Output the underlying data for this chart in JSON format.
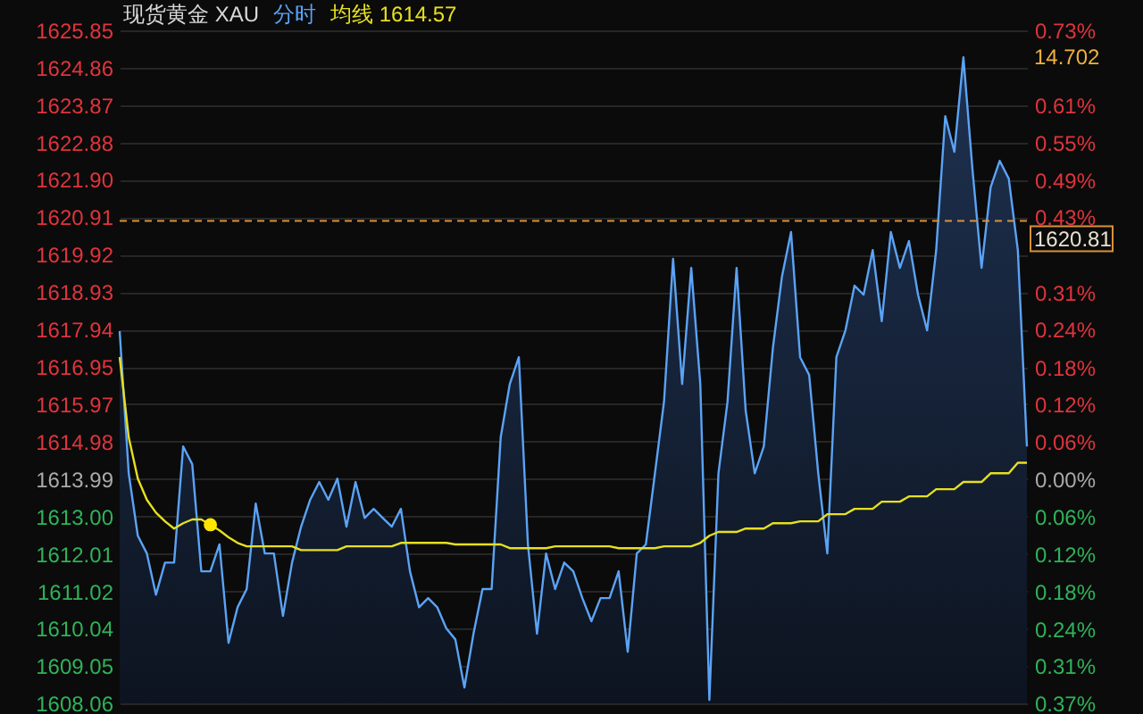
{
  "chart_data": {
    "type": "area",
    "title": "现货黄金 XAU",
    "categories": [
      null,
      null,
      null,
      null,
      null,
      null,
      null,
      null,
      null,
      null,
      null,
      null,
      null,
      null,
      null,
      null,
      null,
      null,
      null,
      null,
      null,
      null,
      null,
      null,
      null,
      null,
      null,
      null,
      null,
      null,
      null,
      null,
      null,
      null,
      null,
      null,
      null,
      null,
      null,
      null,
      null,
      null,
      null,
      null,
      null,
      null,
      null,
      null,
      null,
      null,
      null,
      null,
      null,
      null,
      null,
      null,
      null,
      null,
      null,
      null,
      null,
      null,
      null,
      null,
      null,
      null,
      null,
      null,
      null,
      null,
      null,
      null,
      null,
      null,
      null,
      null,
      null,
      null,
      null,
      null,
      null,
      null,
      null,
      null,
      null,
      null,
      null,
      null,
      null,
      null,
      null,
      null,
      null,
      null,
      null,
      null,
      null,
      null,
      null,
      null,
      null
    ],
    "series": [
      {
        "name": "分时",
        "color": "#5ba3f5",
        "values": [
          1617.9,
          1614.14,
          1612.49,
          1612.02,
          1610.93,
          1611.78,
          1611.78,
          1614.85,
          1614.38,
          1611.55,
          1611.55,
          1612.26,
          1609.66,
          1610.6,
          1611.08,
          1613.34,
          1612.02,
          1612.02,
          1610.37,
          1611.78,
          1612.73,
          1613.44,
          1613.91,
          1613.44,
          1614.0,
          1612.73,
          1613.91,
          1612.96,
          1613.2,
          1612.96,
          1612.73,
          1613.2,
          1611.55,
          1610.6,
          1610.84,
          1610.6,
          1610.04,
          1609.75,
          1608.48,
          1609.9,
          1611.08,
          1611.08,
          1615.09,
          1616.5,
          1617.21,
          1612.26,
          1609.9,
          1612.02,
          1611.08,
          1611.78,
          1611.55,
          1610.84,
          1610.23,
          1610.84,
          1610.84,
          1611.55,
          1609.42,
          1612.02,
          1612.26,
          1614.14,
          1616.03,
          1619.81,
          1616.5,
          1619.57,
          1616.5,
          1608.15,
          1614.14,
          1616.03,
          1619.57,
          1615.8,
          1614.14,
          1614.85,
          1617.45,
          1619.34,
          1620.52,
          1617.21,
          1616.74,
          1614.14,
          1612.02,
          1617.21,
          1617.92,
          1619.1,
          1618.86,
          1620.04,
          1618.16,
          1620.52,
          1619.57,
          1620.28,
          1618.86,
          1617.92,
          1620.04,
          1623.58,
          1622.64,
          1625.14,
          1622.17,
          1619.57,
          1621.7,
          1622.4,
          1621.93,
          1620.04,
          1614.85
        ]
      },
      {
        "name": "均线 1614.57",
        "type": "line",
        "color": "#e6e020",
        "values": [
          1617.21,
          1615.09,
          1614.0,
          1613.44,
          1613.1,
          1612.87,
          1612.68,
          1612.82,
          1612.92,
          1612.92,
          1612.78,
          1612.63,
          1612.45,
          1612.3,
          1612.21,
          1612.21,
          1612.21,
          1612.21,
          1612.21,
          1612.21,
          1612.11,
          1612.11,
          1612.11,
          1612.11,
          1612.11,
          1612.21,
          1612.21,
          1612.21,
          1612.21,
          1612.21,
          1612.21,
          1612.3,
          1612.3,
          1612.3,
          1612.3,
          1612.3,
          1612.3,
          1612.26,
          1612.26,
          1612.26,
          1612.26,
          1612.26,
          1612.26,
          1612.16,
          1612.16,
          1612.16,
          1612.16,
          1612.16,
          1612.21,
          1612.21,
          1612.21,
          1612.21,
          1612.21,
          1612.21,
          1612.21,
          1612.16,
          1612.16,
          1612.16,
          1612.16,
          1612.16,
          1612.21,
          1612.21,
          1612.21,
          1612.21,
          1612.3,
          1612.49,
          1612.59,
          1612.59,
          1612.59,
          1612.68,
          1612.68,
          1612.68,
          1612.82,
          1612.82,
          1612.82,
          1612.87,
          1612.87,
          1612.87,
          1613.06,
          1613.06,
          1613.06,
          1613.2,
          1613.2,
          1613.2,
          1613.39,
          1613.39,
          1613.39,
          1613.53,
          1613.53,
          1613.53,
          1613.72,
          1613.72,
          1613.72,
          1613.91,
          1613.91,
          1613.91,
          1614.14,
          1614.14,
          1614.14,
          1614.42,
          1614.42
        ]
      },
      {
        "type": "scatter",
        "color": "#ffe600",
        "marker": "circle",
        "values": [
          null,
          null,
          null,
          null,
          null,
          null,
          null,
          null,
          null,
          null,
          1612.78,
          null,
          null,
          null,
          null,
          null,
          null,
          null,
          null,
          null,
          null,
          null,
          null,
          null,
          null,
          null,
          null,
          null,
          null,
          null,
          null,
          null,
          null,
          null,
          null,
          null,
          null,
          null,
          null,
          null,
          null,
          null,
          null,
          null,
          null,
          null,
          null,
          null,
          null,
          null,
          null,
          null,
          null,
          null,
          null,
          null,
          null,
          null,
          null,
          null,
          null,
          null,
          null,
          null,
          null,
          null,
          null,
          null,
          null,
          null,
          null,
          null,
          null,
          null,
          null,
          null,
          null,
          null,
          null,
          null,
          null,
          null,
          null,
          null,
          null,
          null,
          null,
          null,
          null,
          null,
          null,
          null,
          null,
          null,
          null,
          null,
          null,
          null,
          null,
          null,
          null
        ]
      }
    ],
    "ylim": [
      1608.06,
      1625.85
    ],
    "yticks": [
      1608.06,
      1609.05,
      1610.04,
      1611.02,
      {
        "value": 1612.01,
        "label": "1612.01"
      },
      {
        "value": 1613.0,
        "label": "1613.00"
      },
      1613.99,
      1614.98,
      1615.97,
      1616.95,
      1617.94,
      1618.93,
      1619.92,
      1620.91,
      {
        "value": 1621.9,
        "label": "1621.90"
      },
      1622.88,
      1623.87,
      1624.86,
      1625.85
    ],
    "y2lim": [
      -0.367,
      0.735
    ],
    "y2ticks": [
      {
        "value": -0.367,
        "label": "0.37%"
      },
      {
        "value": -0.306,
        "label": "0.31%"
      },
      {
        "value": -0.245,
        "label": "0.24%"
      },
      {
        "value": -0.184,
        "label": "0.18%"
      },
      {
        "value": -0.123,
        "label": "0.12%"
      },
      {
        "value": -0.061,
        "label": "0.06%"
      },
      {
        "value": 0,
        "label": "0.00%"
      },
      {
        "value": 0.061,
        "label": "0.06%"
      },
      {
        "value": 0.123,
        "label": "0.12%"
      },
      {
        "value": 0.183,
        "label": "0.18%"
      },
      {
        "value": 0.245,
        "label": "0.24%"
      },
      {
        "value": 0.306,
        "label": "0.31%"
      },
      {
        "value": 0.368,
        "label": null
      },
      {
        "value": 0.429,
        "label": "0.43%"
      },
      {
        "value": 0.49,
        "label": "0.49%"
      },
      {
        "value": 0.551,
        "label": "0.55%"
      },
      {
        "value": 0.612,
        "label": "0.61%"
      },
      {
        "value": 0.673,
        "label": null
      },
      {
        "value": 0.735,
        "label": "0.73%"
      }
    ],
    "ref_lines": [
      {
        "axis": "y",
        "value": 1620.81,
        "label": "1620.81",
        "color": "#d9913a",
        "line_style": "dashed"
      }
    ],
    "annotations": [
      "14.702"
    ],
    "grid": "y",
    "legend": "top"
  }
}
